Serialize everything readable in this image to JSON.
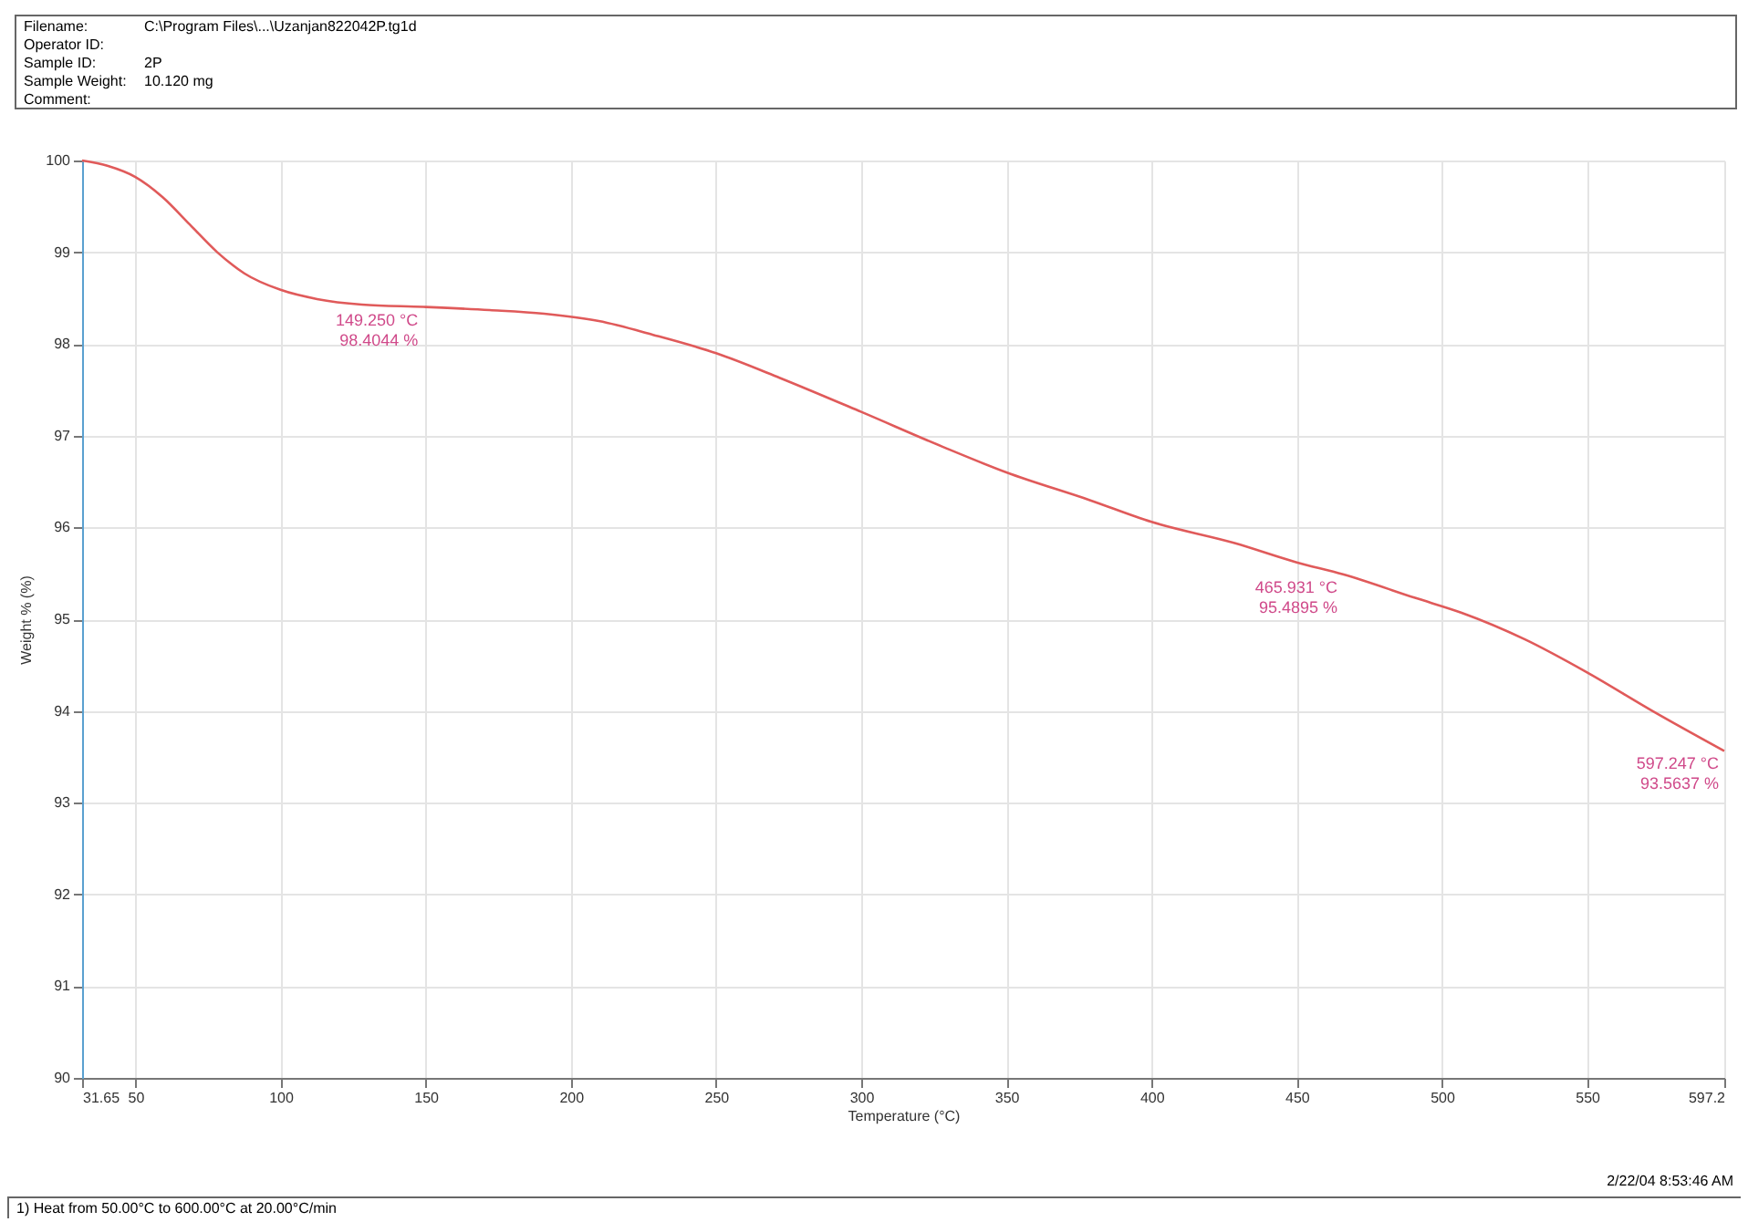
{
  "chart_data": {
    "type": "line",
    "xlabel": "Temperature (°C)",
    "ylabel": "Weight % (%)",
    "xlim": [
      31.65,
      597.247
    ],
    "ylim": [
      90,
      100
    ],
    "xticks": [
      {
        "value": 31.65,
        "label": "31.65"
      },
      50,
      100,
      150,
      200,
      250,
      300,
      350,
      400,
      450,
      500,
      550,
      {
        "value": 597.247,
        "label": "597.2"
      }
    ],
    "yticks": [
      90,
      91,
      92,
      93,
      94,
      95,
      96,
      97,
      98,
      99,
      100
    ],
    "grid": true,
    "line_style": "solid",
    "series": [
      {
        "color": "#e05a5a",
        "x": [
          31.65,
          40.6,
          50,
          59.4,
          68.8,
          78.2,
          87.5,
          100,
          112.6,
          128,
          149.25,
          172,
          190.8,
          209.6,
          228.3,
          250,
          272,
          300,
          328,
          350,
          378.5,
          400,
          428.6,
          450,
          465.931,
          491,
          506.8,
          528.6,
          550,
          572.5,
          597.247
        ],
        "values": [
          100.0,
          99.94,
          99.82,
          99.6,
          99.3,
          99.0,
          98.77,
          98.59,
          98.49,
          98.43,
          98.4044,
          98.37,
          98.33,
          98.25,
          98.1,
          97.9,
          97.63,
          97.26,
          96.88,
          96.6,
          96.3,
          96.06,
          95.83,
          95.62,
          95.4895,
          95.23,
          95.07,
          94.78,
          94.42,
          94.0,
          93.5637
        ]
      }
    ],
    "annotations": [
      "Filename: C:\\Program Files\\...\\Uzanjan822042P.tg1d",
      "Operator ID:",
      "Sample ID: 2P",
      "Sample Weight: 10.120 mg",
      "Comment:",
      {
        "text": "149.250 °C\n98.4044 %",
        "x": 149.25,
        "y": 98.4044
      },
      {
        "text": "465.931 °C\n95.4895 %",
        "x": 465.931,
        "y": 95.4895
      },
      {
        "text": "597.247 °C\n93.5637 %",
        "x": 597.247,
        "y": 93.5637
      },
      "1) Heat from 50.00°C to 600.00°C at 20.00°C/min",
      "2/22/04 8:53:46 AM"
    ]
  }
}
